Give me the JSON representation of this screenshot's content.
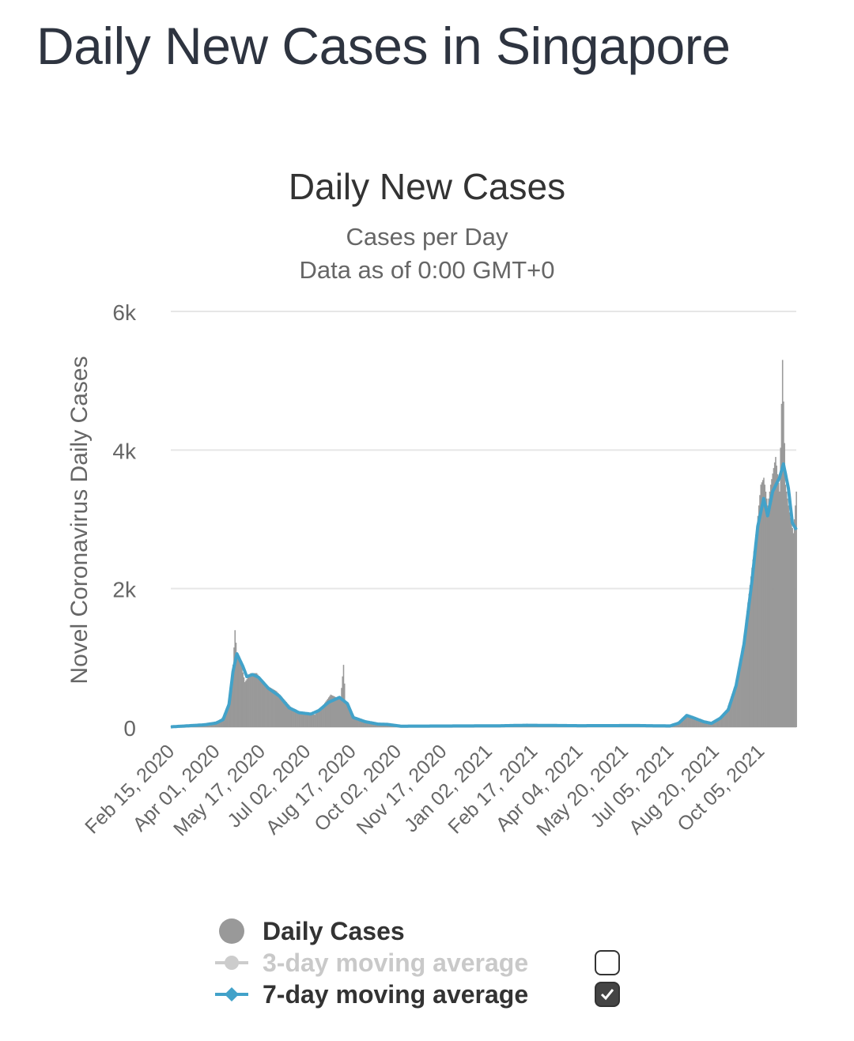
{
  "page": {
    "title": "Daily New Cases in Singapore"
  },
  "colors": {
    "bars": "#999999",
    "ma7": "#42a2c9",
    "ma3_inactive": "#cccccc",
    "grid": "#e6e6e6",
    "text": "#333333"
  },
  "chart_data": {
    "type": "bar",
    "title": "Daily New Cases",
    "subtitle": "Cases per Day",
    "subtitle2": "Data as of 0:00 GMT+0",
    "ylabel": "Novel Coronavirus Daily Cases",
    "xlabel": "",
    "ylim": [
      0,
      6000
    ],
    "yticks": [
      "0",
      "2k",
      "4k",
      "6k"
    ],
    "x_start": "Feb 15, 2020",
    "x_end": "Nov 10, 2021",
    "grid": true,
    "legend_position": "bottom",
    "xticks": [
      "Feb 15, 2020",
      "Apr 01, 2020",
      "May 17, 2020",
      "Jul 02, 2020",
      "Aug 17, 2020",
      "Oct 02, 2020",
      "Nov 17, 2020",
      "Jan 02, 2021",
      "Feb 17, 2021",
      "Apr 04, 2021",
      "May 20, 2021",
      "Jul 05, 2021",
      "Aug 20, 2021",
      "Oct 05, 2021"
    ],
    "daily_keypoints": [
      [
        "Feb 15, 2020",
        5
      ],
      [
        "Mar 20, 2020",
        45
      ],
      [
        "Apr 01, 2020",
        70
      ],
      [
        "Apr 06, 2020",
        120
      ],
      [
        "Apr 12, 2020",
        230
      ],
      [
        "Apr 16, 2020",
        620
      ],
      [
        "Apr 18, 2020",
        900
      ],
      [
        "Apr 20, 2020",
        1400
      ],
      [
        "Apr 22, 2020",
        1040
      ],
      [
        "Apr 26, 2020",
        930
      ],
      [
        "Apr 30, 2020",
        650
      ],
      [
        "May 06, 2020",
        780
      ],
      [
        "May 12, 2020",
        780
      ],
      [
        "May 20, 2020",
        620
      ],
      [
        "Jun 01, 2020",
        520
      ],
      [
        "Jun 10, 2020",
        380
      ],
      [
        "Jun 20, 2020",
        220
      ],
      [
        "Jul 02, 2020",
        200
      ],
      [
        "Jul 10, 2020",
        180
      ],
      [
        "Jul 18, 2020",
        310
      ],
      [
        "Jul 26, 2020",
        470
      ],
      [
        "Aug 05, 2020",
        400
      ],
      [
        "Aug 08, 2020",
        900
      ],
      [
        "Aug 10, 2020",
        360
      ],
      [
        "Aug 20, 2020",
        110
      ],
      [
        "Sep 01, 2020",
        60
      ],
      [
        "Sep 15, 2020",
        40
      ],
      [
        "Sep 25, 2020",
        30
      ],
      [
        "Oct 10, 2020",
        12
      ],
      [
        "Jan 10, 2021",
        20
      ],
      [
        "Feb 01, 2021",
        30
      ],
      [
        "Apr 04, 2021",
        25
      ],
      [
        "Jun 01, 2021",
        25
      ],
      [
        "Jul 05, 2021",
        20
      ],
      [
        "Jul 15, 2021",
        60
      ],
      [
        "Jul 20, 2021",
        160
      ],
      [
        "Jul 28, 2021",
        130
      ],
      [
        "Aug 08, 2021",
        70
      ],
      [
        "Aug 15, 2021",
        50
      ],
      [
        "Aug 25, 2021",
        150
      ],
      [
        "Sep 01, 2021",
        270
      ],
      [
        "Sep 10, 2021",
        650
      ],
      [
        "Sep 18, 2021",
        1300
      ],
      [
        "Sep 26, 2021",
        2300
      ],
      [
        "Oct 01, 2021",
        2900
      ],
      [
        "Oct 05, 2021",
        3500
      ],
      [
        "Oct 08, 2021",
        3600
      ],
      [
        "Oct 12, 2021",
        3200
      ],
      [
        "Oct 15, 2021",
        3500
      ],
      [
        "Oct 20, 2021",
        3900
      ],
      [
        "Oct 24, 2021",
        3400
      ],
      [
        "Oct 27, 2021",
        5300
      ],
      [
        "Oct 30, 2021",
        3500
      ],
      [
        "Nov 03, 2021",
        3100
      ],
      [
        "Nov 07, 2021",
        2800
      ],
      [
        "Nov 10, 2021",
        3400
      ]
    ],
    "ma7_keypoints": [
      [
        "Feb 15, 2020",
        5
      ],
      [
        "Mar 20, 2020",
        35
      ],
      [
        "Apr 01, 2020",
        60
      ],
      [
        "Apr 08, 2020",
        110
      ],
      [
        "Apr 14, 2020",
        330
      ],
      [
        "Apr 18, 2020",
        800
      ],
      [
        "Apr 22, 2020",
        1060
      ],
      [
        "Apr 28, 2020",
        880
      ],
      [
        "May 02, 2020",
        730
      ],
      [
        "May 08, 2020",
        760
      ],
      [
        "May 14, 2020",
        720
      ],
      [
        "May 24, 2020",
        560
      ],
      [
        "Jun 04, 2020",
        450
      ],
      [
        "Jun 14, 2020",
        280
      ],
      [
        "Jun 24, 2020",
        210
      ],
      [
        "Jul 06, 2020",
        190
      ],
      [
        "Jul 14, 2020",
        240
      ],
      [
        "Jul 24, 2020",
        360
      ],
      [
        "Aug 04, 2020",
        430
      ],
      [
        "Aug 12, 2020",
        340
      ],
      [
        "Aug 18, 2020",
        140
      ],
      [
        "Aug 30, 2020",
        80
      ],
      [
        "Sep 12, 2020",
        45
      ],
      [
        "Sep 22, 2020",
        40
      ],
      [
        "Oct 05, 2020",
        15
      ],
      [
        "Jan 10, 2021",
        20
      ],
      [
        "Feb 10, 2021",
        28
      ],
      [
        "Apr 04, 2021",
        22
      ],
      [
        "Jun 01, 2021",
        24
      ],
      [
        "Jul 05, 2021",
        18
      ],
      [
        "Jul 14, 2021",
        60
      ],
      [
        "Jul 22, 2021",
        170
      ],
      [
        "Jul 30, 2021",
        130
      ],
      [
        "Aug 08, 2021",
        80
      ],
      [
        "Aug 16, 2021",
        55
      ],
      [
        "Aug 25, 2021",
        130
      ],
      [
        "Sep 02, 2021",
        250
      ],
      [
        "Sep 10, 2021",
        600
      ],
      [
        "Sep 18, 2021",
        1200
      ],
      [
        "Sep 26, 2021",
        2100
      ],
      [
        "Oct 02, 2021",
        2900
      ],
      [
        "Oct 08, 2021",
        3300
      ],
      [
        "Oct 12, 2021",
        3050
      ],
      [
        "Oct 17, 2021",
        3400
      ],
      [
        "Oct 24, 2021",
        3600
      ],
      [
        "Oct 28, 2021",
        3800
      ],
      [
        "Nov 02, 2021",
        3450
      ],
      [
        "Nov 06, 2021",
        2950
      ],
      [
        "Nov 10, 2021",
        2850
      ]
    ]
  },
  "legend": {
    "items": [
      {
        "label": "Daily Cases",
        "active": true,
        "kind": "daily"
      },
      {
        "label": "3-day moving average",
        "active": false,
        "kind": "ma3",
        "checked": false
      },
      {
        "label": "7-day moving average",
        "active": true,
        "kind": "ma7",
        "checked": true
      }
    ]
  }
}
